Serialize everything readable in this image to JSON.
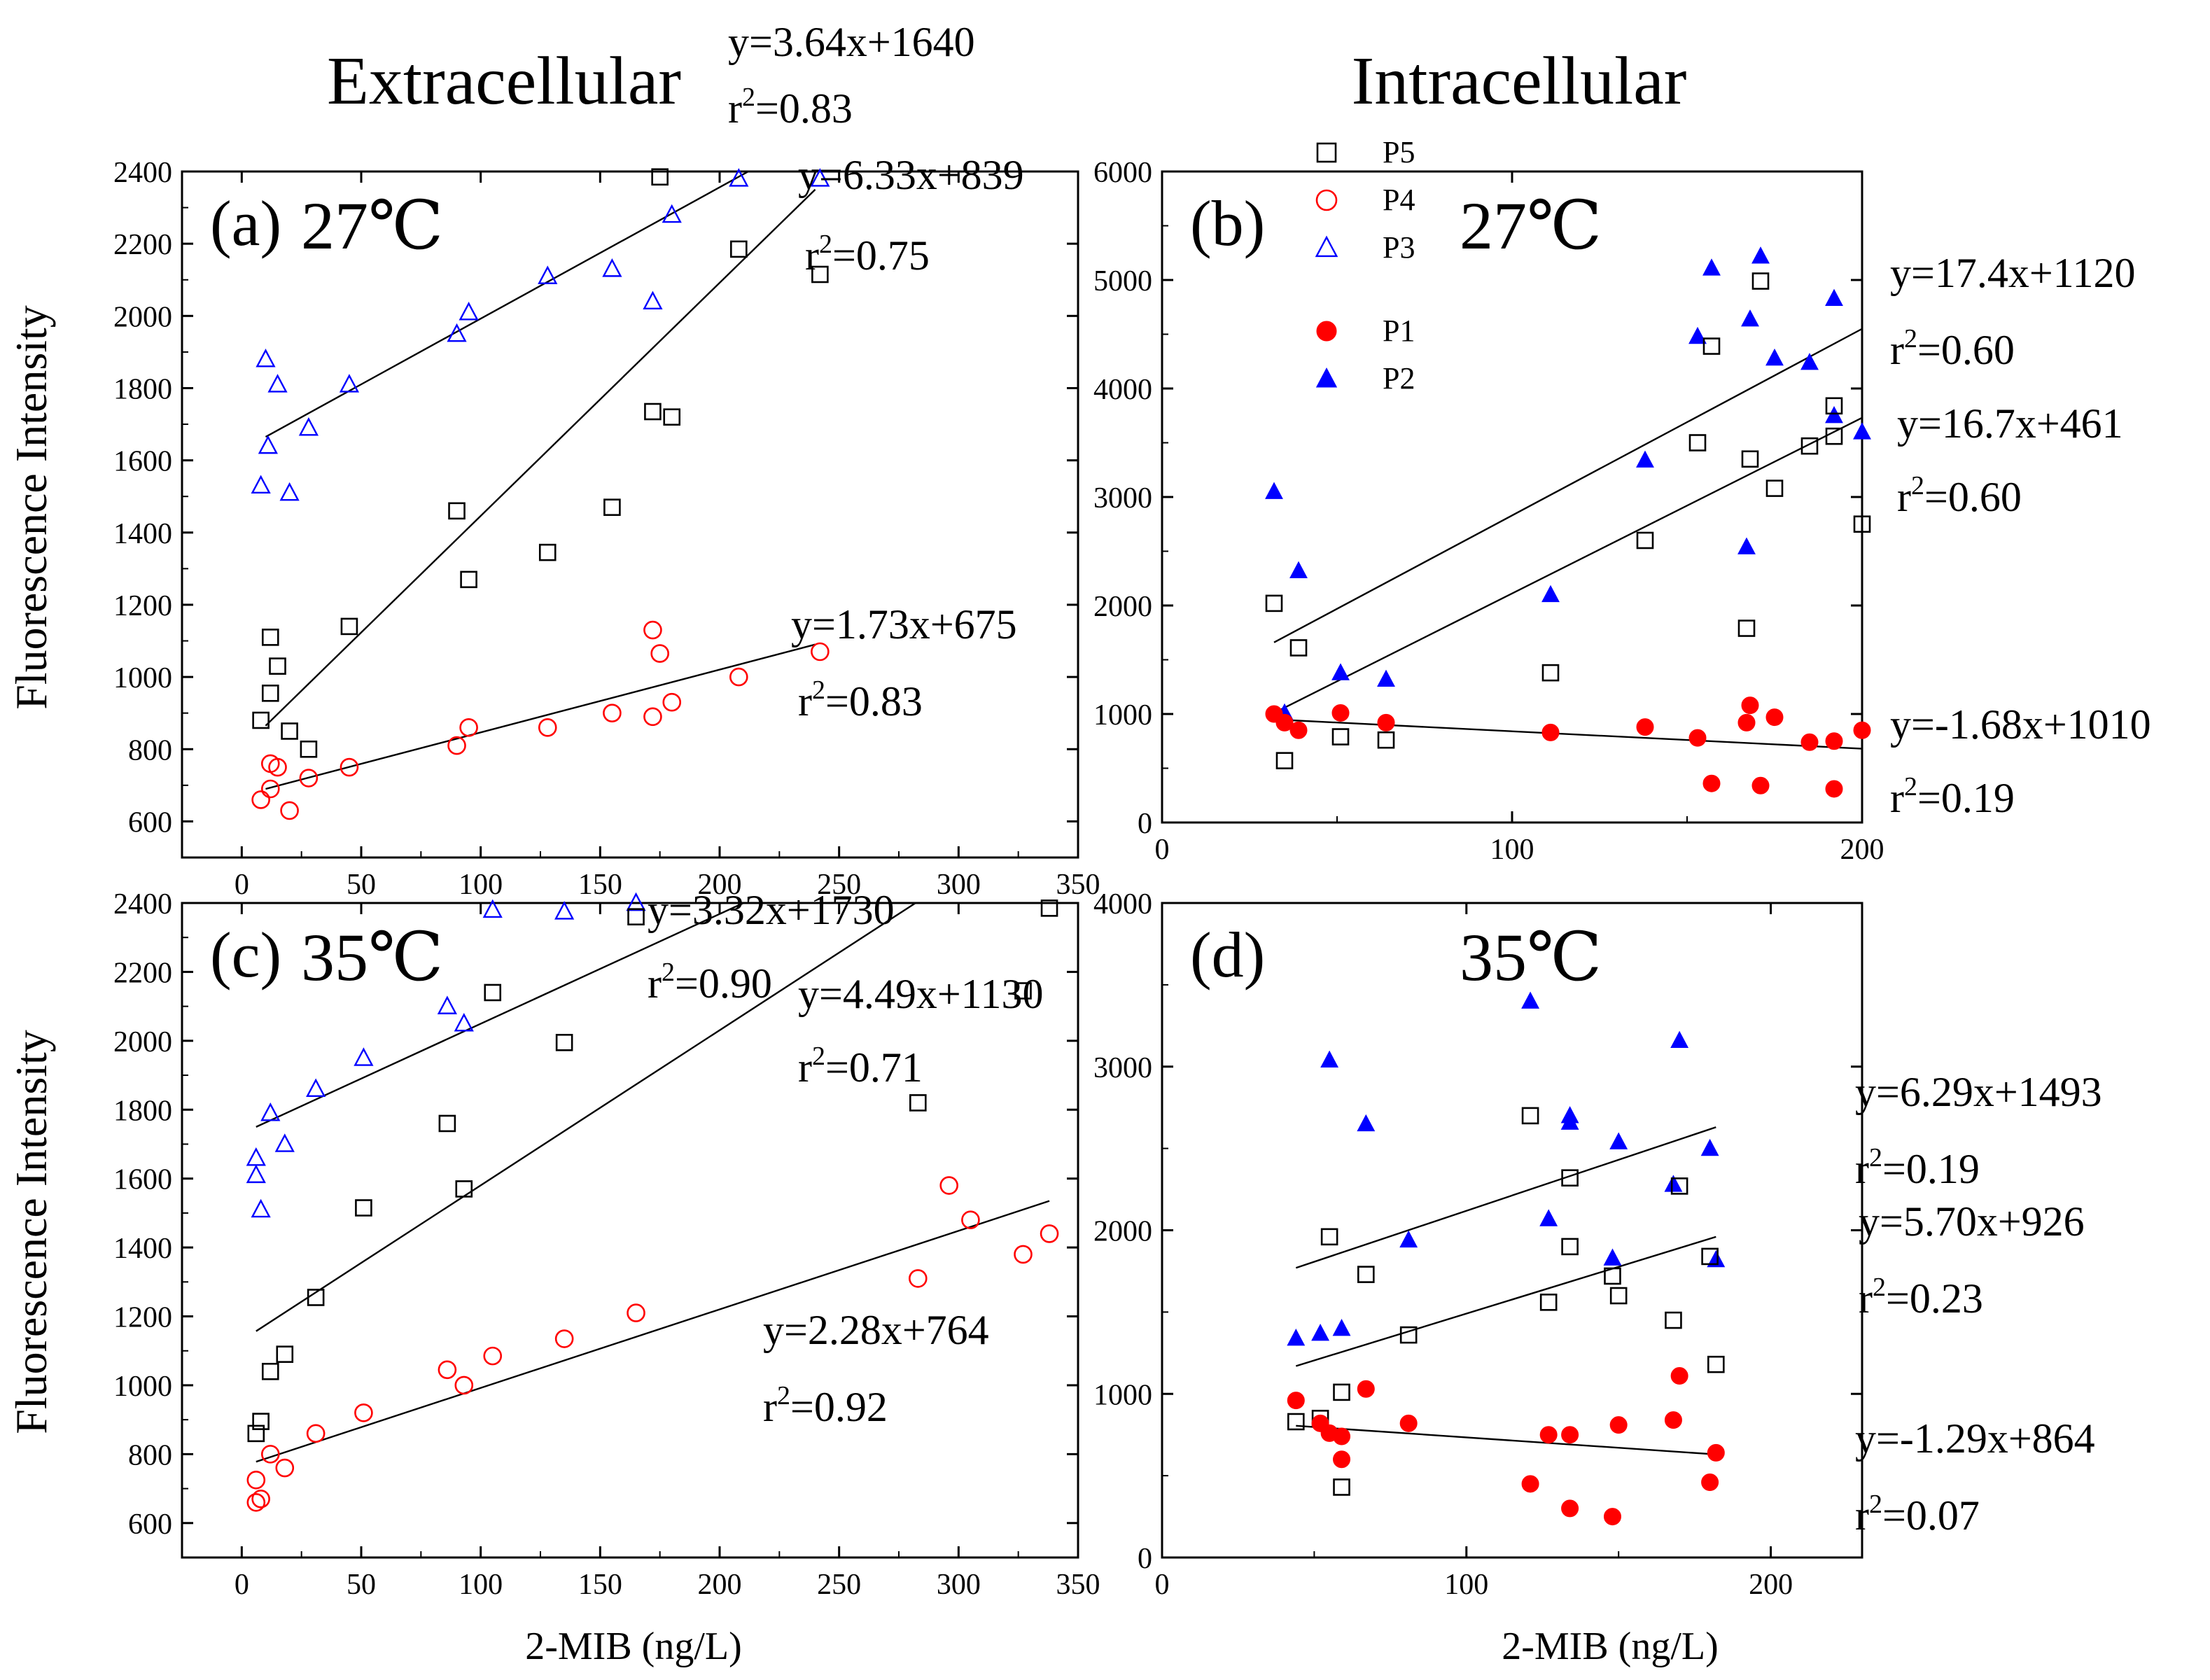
{
  "headers": {
    "left": "Extracellular",
    "right": "Intracellular"
  },
  "xlabel": "2-MIB (ng/L)",
  "ylabel": "Fluorescence Intensity",
  "legend": {
    "items": [
      {
        "label": "P5",
        "marker": "open-square",
        "color": "#000000"
      },
      {
        "label": "P4",
        "marker": "open-circle",
        "color": "#ff0000"
      },
      {
        "label": "P3",
        "marker": "open-triangle",
        "color": "#0000ff"
      },
      {
        "label": "P1",
        "marker": "filled-circle",
        "color": "#ff0000"
      },
      {
        "label": "P2",
        "marker": "filled-triangle",
        "color": "#0000ff"
      }
    ]
  },
  "chart_data": [
    {
      "panel": "(a)",
      "temp": "27℃",
      "type": "scatter",
      "xlim": [
        -25,
        350
      ],
      "ylim": [
        500,
        2400
      ],
      "xticks": [
        0,
        50,
        100,
        150,
        200,
        250,
        300,
        350
      ],
      "yticks": [
        600,
        800,
        1000,
        1200,
        1400,
        1600,
        1800,
        2000,
        2200,
        2400
      ],
      "series": [
        {
          "name": "P3",
          "marker": "open-triangle",
          "color": "#0000ff",
          "points": [
            [
              8,
              1530
            ],
            [
              10,
              1880
            ],
            [
              11,
              1640
            ],
            [
              15,
              1810
            ],
            [
              20,
              1510
            ],
            [
              28,
              1690
            ],
            [
              45,
              1810
            ],
            [
              90,
              1950
            ],
            [
              95,
              2010
            ],
            [
              128,
              2110
            ],
            [
              155,
              2130
            ],
            [
              172,
              2040
            ],
            [
              180,
              2280
            ],
            [
              208,
              2380
            ],
            [
              242,
              2380
            ]
          ]
        },
        {
          "name": "P5",
          "marker": "open-square",
          "color": "#000000",
          "points": [
            [
              8,
              880
            ],
            [
              12,
              1110
            ],
            [
              12,
              955
            ],
            [
              15,
              1030
            ],
            [
              20,
              850
            ],
            [
              28,
              800
            ],
            [
              45,
              1140
            ],
            [
              90,
              1460
            ],
            [
              95,
              1270
            ],
            [
              128,
              1345
            ],
            [
              155,
              1470
            ],
            [
              172,
              1735
            ],
            [
              175,
              2385
            ],
            [
              180,
              1720
            ],
            [
              208,
              2185
            ],
            [
              242,
              2115
            ]
          ]
        },
        {
          "name": "P4",
          "marker": "open-circle",
          "color": "#ff0000",
          "points": [
            [
              8,
              660
            ],
            [
              12,
              690
            ],
            [
              12,
              760
            ],
            [
              15,
              750
            ],
            [
              20,
              630
            ],
            [
              28,
              720
            ],
            [
              45,
              750
            ],
            [
              90,
              810
            ],
            [
              95,
              860
            ],
            [
              128,
              860
            ],
            [
              155,
              900
            ],
            [
              172,
              1130
            ],
            [
              175,
              1065
            ],
            [
              180,
              930
            ],
            [
              172,
              890
            ],
            [
              208,
              1000
            ],
            [
              242,
              1070
            ]
          ]
        }
      ],
      "fits": [
        {
          "from": [
            10,
            1665
          ],
          "to": [
            212,
            2400
          ]
        },
        {
          "from": [
            10,
            865
          ],
          "to": [
            240,
            2350
          ]
        },
        {
          "from": [
            10,
            690
          ],
          "to": [
            240,
            1090
          ]
        }
      ],
      "annotations": [
        {
          "eq": "y=3.64x+1640",
          "r2": "0.83"
        },
        {
          "eq": "y=6.33x+839",
          "r2": "0.75"
        },
        {
          "eq": "y=1.73x+675",
          "r2": "0.83"
        }
      ]
    },
    {
      "panel": "(b)",
      "temp": "27℃",
      "type": "scatter",
      "xlim": [
        0,
        200
      ],
      "ylim": [
        0,
        6000
      ],
      "xticks": [
        0,
        100,
        200
      ],
      "yticks": [
        0,
        1000,
        2000,
        3000,
        4000,
        5000,
        6000
      ],
      "series": [
        {
          "name": "P2",
          "marker": "filled-triangle",
          "color": "#0000ff",
          "points": [
            [
              32,
              3050
            ],
            [
              35,
              1010
            ],
            [
              39,
              2320
            ],
            [
              51,
              1380
            ],
            [
              64,
              1320
            ],
            [
              111,
              2100
            ],
            [
              138,
              3340
            ],
            [
              153,
              4480
            ],
            [
              157,
              5110
            ],
            [
              167,
              2540
            ],
            [
              168,
              4640
            ],
            [
              171,
              5220
            ],
            [
              175,
              4280
            ],
            [
              185,
              4240
            ],
            [
              192,
              4830
            ],
            [
              192,
              3750
            ],
            [
              200,
              3600
            ]
          ]
        },
        {
          "name": "P5",
          "marker": "open-square",
          "color": "#000000",
          "points": [
            [
              32,
              2020
            ],
            [
              35,
              570
            ],
            [
              39,
              1610
            ],
            [
              51,
              790
            ],
            [
              64,
              760
            ],
            [
              111,
              1380
            ],
            [
              138,
              2600
            ],
            [
              153,
              3500
            ],
            [
              157,
              4390
            ],
            [
              167,
              1790
            ],
            [
              168,
              3350
            ],
            [
              171,
              4990
            ],
            [
              175,
              3080
            ],
            [
              185,
              3470
            ],
            [
              192,
              3840
            ],
            [
              192,
              3560
            ],
            [
              200,
              2750
            ]
          ]
        },
        {
          "name": "P1",
          "marker": "filled-circle",
          "color": "#ff0000",
          "points": [
            [
              32,
              1000
            ],
            [
              35,
              920
            ],
            [
              39,
              850
            ],
            [
              51,
              1010
            ],
            [
              64,
              920
            ],
            [
              111,
              830
            ],
            [
              138,
              880
            ],
            [
              153,
              780
            ],
            [
              157,
              360
            ],
            [
              167,
              920
            ],
            [
              168,
              1080
            ],
            [
              171,
              340
            ],
            [
              175,
              970
            ],
            [
              185,
              740
            ],
            [
              192,
              750
            ],
            [
              192,
              310
            ],
            [
              200,
              850
            ]
          ]
        }
      ],
      "fits": [
        {
          "from": [
            32,
            1660
          ],
          "to": [
            200,
            4550
          ]
        },
        {
          "from": [
            32,
            1010
          ],
          "to": [
            200,
            3730
          ]
        },
        {
          "from": [
            32,
            950
          ],
          "to": [
            200,
            680
          ]
        }
      ],
      "annotations": [
        {
          "eq": "y=17.4x+1120",
          "r2": "0.60"
        },
        {
          "eq": "y=16.7x+461",
          "r2": "0.60"
        },
        {
          "eq": "y=-1.68x+1010",
          "r2": "0.19"
        }
      ]
    },
    {
      "panel": "(c)",
      "temp": "35℃",
      "type": "scatter",
      "xlim": [
        -25,
        350
      ],
      "ylim": [
        500,
        2400
      ],
      "xticks": [
        0,
        50,
        100,
        150,
        200,
        250,
        300,
        350
      ],
      "yticks": [
        600,
        800,
        1000,
        1200,
        1400,
        1600,
        1800,
        2000,
        2200,
        2400
      ],
      "series": [
        {
          "name": "P3",
          "marker": "open-triangle",
          "color": "#0000ff",
          "points": [
            [
              6,
              1660
            ],
            [
              6,
              1610
            ],
            [
              8,
              1510
            ],
            [
              12,
              1790
            ],
            [
              18,
              1700
            ],
            [
              31,
              1860
            ],
            [
              51,
              1950
            ],
            [
              86,
              2100
            ],
            [
              93,
              2050
            ],
            [
              105,
              2380
            ],
            [
              135,
              2375
            ],
            [
              165,
              2400
            ]
          ]
        },
        {
          "name": "P5",
          "marker": "open-square",
          "color": "#000000",
          "points": [
            [
              6,
              860
            ],
            [
              8,
              895
            ],
            [
              12,
              1040
            ],
            [
              18,
              1090
            ],
            [
              31,
              1255
            ],
            [
              51,
              1515
            ],
            [
              86,
              1760
            ],
            [
              93,
              1570
            ],
            [
              105,
              2140
            ],
            [
              135,
              1995
            ],
            [
              165,
              2360
            ],
            [
              283,
              1820
            ],
            [
              327,
              2145
            ],
            [
              338,
              2385
            ]
          ]
        },
        {
          "name": "P4",
          "marker": "open-circle",
          "color": "#ff0000",
          "points": [
            [
              6,
              660
            ],
            [
              6,
              725
            ],
            [
              8,
              670
            ],
            [
              12,
              800
            ],
            [
              18,
              760
            ],
            [
              31,
              860
            ],
            [
              51,
              920
            ],
            [
              86,
              1045
            ],
            [
              93,
              1000
            ],
            [
              105,
              1085
            ],
            [
              135,
              1135
            ],
            [
              165,
              1210
            ],
            [
              283,
              1310
            ],
            [
              296,
              1580
            ],
            [
              305,
              1480
            ],
            [
              327,
              1380
            ],
            [
              338,
              1440
            ]
          ]
        }
      ],
      "fits": [
        {
          "from": [
            6,
            1750
          ],
          "to": [
            210,
            2400
          ]
        },
        {
          "from": [
            6,
            1157
          ],
          "to": [
            282,
            2400
          ]
        },
        {
          "from": [
            6,
            778
          ],
          "to": [
            338,
            1535
          ]
        }
      ],
      "annotations": [
        {
          "eq": "y=3.32x+1730",
          "r2": "0.90"
        },
        {
          "eq": "y=4.49x+1130",
          "r2": "0.71"
        },
        {
          "eq": "y=2.28x+764",
          "r2": "0.92"
        }
      ]
    },
    {
      "panel": "(d)",
      "temp": "35℃",
      "type": "scatter",
      "xlim": [
        0,
        230
      ],
      "ylim": [
        0,
        4000
      ],
      "xticks": [
        0,
        100,
        200
      ],
      "yticks": [
        0,
        1000,
        2000,
        3000,
        4000
      ],
      "series": [
        {
          "name": "P2",
          "marker": "filled-triangle",
          "color": "#0000ff",
          "points": [
            [
              44,
              1340
            ],
            [
              52,
              1370
            ],
            [
              55,
              3040
            ],
            [
              59,
              1400
            ],
            [
              67,
              2650
            ],
            [
              81,
              1940
            ],
            [
              121,
              3400
            ],
            [
              127,
              2070
            ],
            [
              134,
              2700
            ],
            [
              134,
              2660
            ],
            [
              150,
              2540
            ],
            [
              148,
              1830
            ],
            [
              170,
              3160
            ],
            [
              168,
              2280
            ],
            [
              180,
              2500
            ],
            [
              182,
              1820
            ]
          ]
        },
        {
          "name": "P5",
          "marker": "open-square",
          "color": "#000000",
          "points": [
            [
              44,
              830
            ],
            [
              52,
              850
            ],
            [
              55,
              1960
            ],
            [
              59,
              1010
            ],
            [
              59,
              430
            ],
            [
              67,
              1730
            ],
            [
              81,
              1360
            ],
            [
              121,
              2700
            ],
            [
              127,
              1560
            ],
            [
              134,
              2320
            ],
            [
              134,
              1900
            ],
            [
              148,
              1720
            ],
            [
              150,
              1600
            ],
            [
              168,
              1450
            ],
            [
              170,
              2270
            ],
            [
              180,
              1840
            ],
            [
              182,
              1180
            ]
          ]
        },
        {
          "name": "P1",
          "marker": "filled-circle",
          "color": "#ff0000",
          "points": [
            [
              44,
              960
            ],
            [
              52,
              820
            ],
            [
              55,
              760
            ],
            [
              59,
              740
            ],
            [
              59,
              600
            ],
            [
              67,
              1030
            ],
            [
              81,
              820
            ],
            [
              121,
              450
            ],
            [
              127,
              750
            ],
            [
              134,
              300
            ],
            [
              134,
              750
            ],
            [
              148,
              250
            ],
            [
              150,
              810
            ],
            [
              168,
              840
            ],
            [
              170,
              1110
            ],
            [
              180,
              460
            ],
            [
              182,
              640
            ]
          ]
        }
      ],
      "fits": [
        {
          "from": [
            44,
            1770
          ],
          "to": [
            182,
            2630
          ]
        },
        {
          "from": [
            44,
            1170
          ],
          "to": [
            182,
            1960
          ]
        },
        {
          "from": [
            44,
            805
          ],
          "to": [
            182,
            630
          ]
        }
      ],
      "annotations": [
        {
          "eq": "y=6.29x+1493",
          "r2": "0.19"
        },
        {
          "eq": "y=5.70x+926",
          "r2": "0.23"
        },
        {
          "eq": "y=-1.29x+864",
          "r2": "0.07"
        }
      ]
    }
  ]
}
